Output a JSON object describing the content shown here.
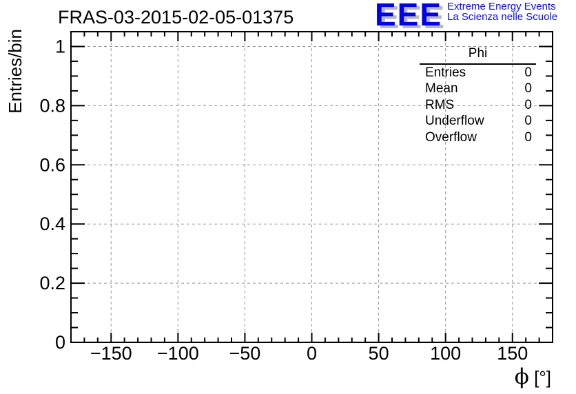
{
  "header": {
    "logo": {
      "eee": "EEE",
      "line1": "Extreme Energy Events",
      "line2": "La Scienza nelle Scuole"
    }
  },
  "stats": {
    "title": "Phi",
    "rows": [
      {
        "label": "Entries",
        "value": "0"
      },
      {
        "label": "Mean",
        "value": "0"
      },
      {
        "label": "RMS",
        "value": "0"
      },
      {
        "label": "Underflow",
        "value": "0"
      },
      {
        "label": "Overflow",
        "value": "0"
      }
    ]
  },
  "chart_data": {
    "type": "bar",
    "title": "FRAS-03-2015-02-05-01375",
    "xlabel": "ϕ [°]",
    "xlabel_symbol": "ϕ",
    "xlabel_unit": "[°]",
    "ylabel": "Entries/bin",
    "xlim": [
      -180,
      180
    ],
    "ylim": [
      0,
      1.05
    ],
    "x_major_ticks": [
      -150,
      -100,
      -50,
      0,
      50,
      100,
      150
    ],
    "x_minor_step": 10,
    "y_major_ticks": [
      0,
      0.2,
      0.4,
      0.6,
      0.8,
      1
    ],
    "y_minor_step": 0.05,
    "grid": "dashed-gray-at-major-ticks",
    "legend_position": "none",
    "series": [
      {
        "name": "Phi",
        "entries": 0,
        "values": []
      }
    ],
    "colors": {
      "grid_gray": "#959595",
      "axis_black": "#000000",
      "logo_blue": "#0000f0",
      "logo_shadow_gray": "#b9b9b9"
    }
  }
}
